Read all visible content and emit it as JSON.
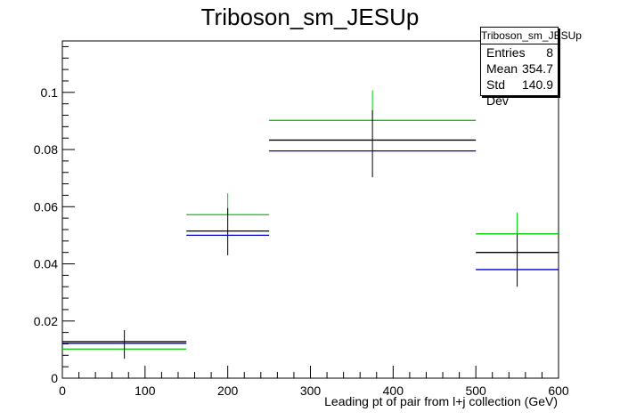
{
  "chart_data": {
    "type": "scatter",
    "title": "Triboson_sm_JESUp",
    "xlabel": "Leading pt of pair from l+j collection (GeV)",
    "ylabel": "",
    "xlim": [
      0,
      600
    ],
    "ylim": [
      0,
      0.118
    ],
    "xticks": [
      0,
      100,
      200,
      300,
      400,
      500,
      600
    ],
    "yticks": [
      0,
      0.02,
      0.04,
      0.06,
      0.08,
      0.1
    ],
    "ytick_labels": [
      "0",
      "0.02",
      "0.04",
      "0.06",
      "0.08",
      "0.1"
    ],
    "grid": false,
    "bins": [
      {
        "xlow": 0,
        "xhigh": 150,
        "xcenter": 75
      },
      {
        "xlow": 150,
        "xhigh": 250,
        "xcenter": 200
      },
      {
        "xlow": 250,
        "xhigh": 500,
        "xcenter": 375
      },
      {
        "xlow": 500,
        "xhigh": 600,
        "xcenter": 550
      }
    ],
    "series": [
      {
        "color": "#00cc00",
        "values": [
          0.0102,
          0.0572,
          0.0902,
          0.0505
        ],
        "yerr_up": [
          0.0,
          0.0075,
          0.0105,
          0.0075
        ],
        "yerr_down": [
          0.0,
          0.0,
          0.0,
          0.0
        ]
      },
      {
        "color": "#000000",
        "values": [
          0.0128,
          0.0515,
          0.0833,
          0.044
        ],
        "yerr_up": [
          0.004,
          0.008,
          0.0105,
          0.0065
        ],
        "yerr_down": [
          0.006,
          0.0085,
          0.013,
          0.012
        ]
      },
      {
        "color": "#0000cc",
        "values": [
          0.0122,
          0.05,
          0.0795,
          0.038
        ],
        "yerr_up": [
          0.0,
          0.0,
          0.0,
          0.0
        ],
        "yerr_down": [
          0.0,
          0.0,
          0.0,
          0.0
        ]
      }
    ]
  },
  "stats": {
    "name": "Triboson_sm_JESUp",
    "entries_label": "Entries",
    "entries": "8",
    "mean_label": "Mean",
    "mean": "354.7",
    "stddev_label": "Std Dev",
    "stddev": "140.9"
  }
}
